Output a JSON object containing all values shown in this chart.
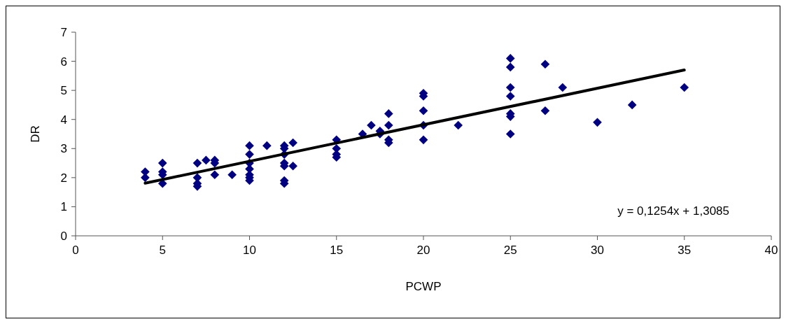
{
  "chart_data": {
    "type": "scatter",
    "xlabel": "PCWP",
    "ylabel": "DR",
    "xlim": [
      0,
      40
    ],
    "ylim": [
      0,
      7
    ],
    "xticks": [
      0,
      5,
      10,
      15,
      20,
      25,
      30,
      35,
      40
    ],
    "yticks": [
      0,
      1,
      2,
      3,
      4,
      5,
      6,
      7
    ],
    "grid": false,
    "series": [
      {
        "color": "#000080",
        "marker": "diamond",
        "x": [
          4,
          4,
          5,
          5,
          5,
          5,
          7,
          7,
          7,
          7,
          7.5,
          8,
          8,
          8,
          9,
          10,
          10,
          10,
          10,
          10,
          10,
          10,
          11,
          12,
          12,
          12,
          12,
          12,
          12,
          12,
          12.5,
          12.5,
          15,
          15,
          15,
          15,
          16.5,
          17,
          17.5,
          17.5,
          18,
          18,
          18,
          18,
          20,
          20,
          20,
          20,
          20,
          22,
          25,
          25,
          25,
          25,
          25,
          25,
          25,
          27,
          27,
          28,
          30,
          32,
          35
        ],
        "values": [
          2.2,
          2.0,
          2.5,
          2.2,
          2.1,
          1.8,
          2.5,
          2.0,
          1.8,
          1.7,
          2.6,
          2.6,
          2.5,
          2.1,
          2.1,
          3.1,
          2.8,
          2.5,
          2.3,
          2.1,
          2.0,
          1.9,
          3.1,
          3.1,
          3.0,
          2.8,
          2.5,
          2.4,
          1.9,
          1.8,
          3.2,
          2.4,
          3.3,
          3.0,
          2.8,
          2.7,
          3.5,
          3.8,
          3.6,
          3.5,
          4.2,
          3.8,
          3.3,
          3.2,
          4.9,
          4.8,
          4.3,
          3.8,
          3.3,
          3.8,
          6.1,
          5.8,
          5.1,
          4.8,
          4.2,
          4.1,
          3.5,
          5.9,
          4.3,
          5.1,
          3.9,
          4.5,
          5.1
        ]
      },
      {
        "type": "line",
        "color": "#000000",
        "line_style": "solid",
        "x": [
          4,
          35
        ],
        "values": [
          1.81,
          5.7
        ]
      }
    ],
    "annotations": [
      "y = 0,1254x + 1,3085"
    ]
  }
}
